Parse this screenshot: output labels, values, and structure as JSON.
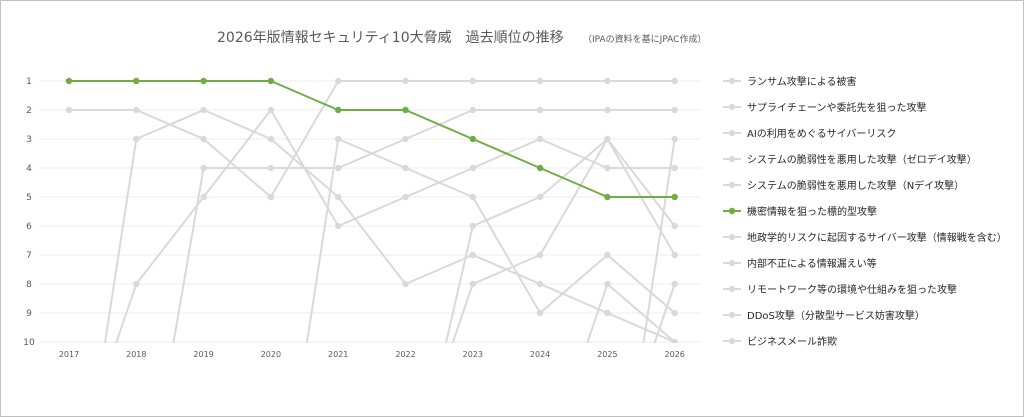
{
  "chart_data": {
    "type": "line",
    "title": "2026年版情報セキュリティ10大脅威　過去順位の推移",
    "subtitle": "（IPAの資料を基にJPAC作成）",
    "x": [
      "2017",
      "2018",
      "2019",
      "2020",
      "2021",
      "2022",
      "2023",
      "2024",
      "2025",
      "2026"
    ],
    "y_ticks": [
      "1",
      "2",
      "3",
      "4",
      "5",
      "6",
      "7",
      "8",
      "9",
      "10"
    ],
    "ylim": [
      1,
      10
    ],
    "y_reversed": true,
    "grid": true,
    "legend_position": "right",
    "highlight_color": "#70ad47",
    "base_color": "#d9d9d9",
    "series": [
      {
        "name": "ランサム攻撃による被害",
        "values": [
          2,
          2,
          3,
          5,
          1,
          1,
          1,
          1,
          1,
          1
        ]
      },
      {
        "name": "サプライチェーンや委託先を狙った攻撃",
        "values": [
          null,
          null,
          4,
          4,
          4,
          3,
          2,
          2,
          2,
          2
        ]
      },
      {
        "name": "AIの利用をめぐるサイバーリスク",
        "values": [
          null,
          null,
          null,
          null,
          null,
          null,
          null,
          null,
          null,
          3
        ]
      },
      {
        "name": "システムの脆弱性を悪用した攻撃（ゼロデイ攻撃）",
        "values": [
          null,
          null,
          null,
          null,
          null,
          null,
          6,
          5,
          3,
          7
        ]
      },
      {
        "name": "システムの脆弱性を悪用した攻撃（Nデイ攻撃）",
        "values": [
          null,
          null,
          null,
          null,
          null,
          null,
          8,
          7,
          3,
          6
        ]
      },
      {
        "name": "機密情報を狙った標的型攻撃",
        "values": [
          1,
          1,
          1,
          1,
          2,
          2,
          3,
          4,
          5,
          5
        ],
        "highlight": true
      },
      {
        "name": "地政学的リスクに起因するサイバー攻撃（情報戦を含む）",
        "values": [
          null,
          null,
          null,
          null,
          null,
          null,
          null,
          null,
          null,
          8
        ]
      },
      {
        "name": "内部不正による情報漏えい等",
        "values": [
          null,
          8,
          5,
          2,
          6,
          5,
          4,
          3,
          4,
          4
        ]
      },
      {
        "name": "リモートワーク等の環境や仕組みを狙った攻撃",
        "values": [
          null,
          null,
          null,
          null,
          3,
          4,
          5,
          9,
          7,
          9
        ]
      },
      {
        "name": "DDoS攻撃（分散型サービス妨害攻撃）",
        "values": [
          null,
          null,
          null,
          null,
          null,
          null,
          null,
          null,
          8,
          10
        ]
      },
      {
        "name": "ビジネスメール詐欺",
        "values": [
          null,
          3,
          2,
          3,
          5,
          8,
          7,
          8,
          9,
          10
        ]
      }
    ]
  }
}
